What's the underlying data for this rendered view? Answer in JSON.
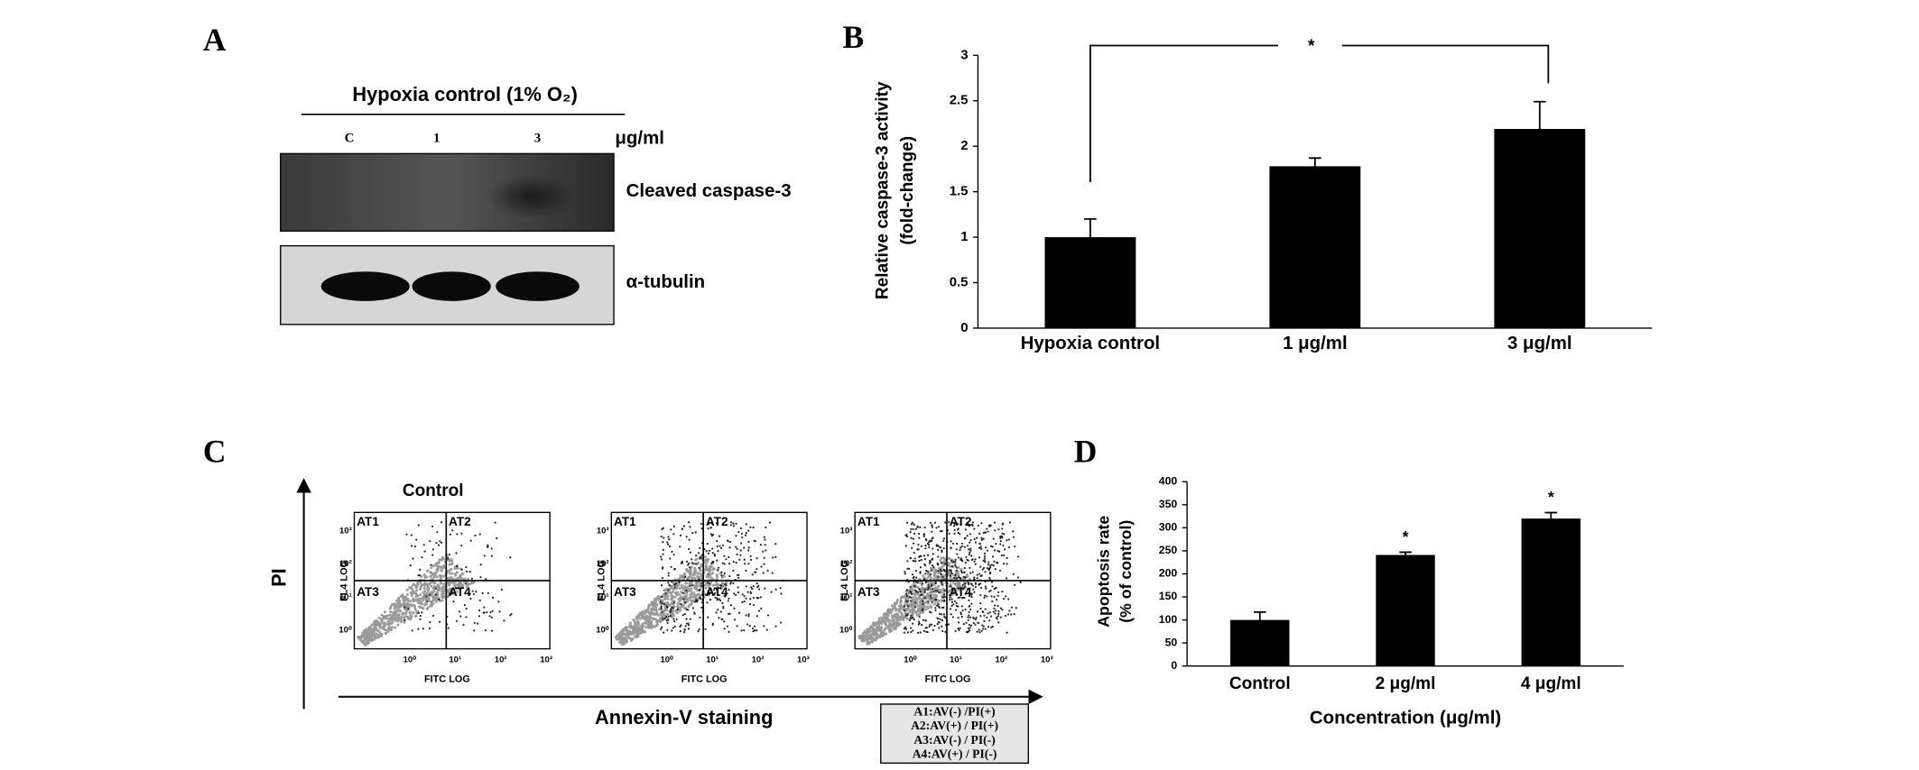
{
  "panel_labels": [
    "A",
    "B",
    "C",
    "D"
  ],
  "blot": {
    "title": "Hypoxia control (1% O₂)",
    "lanes": [
      "C",
      "1",
      "3"
    ],
    "unit": "μg/ml",
    "bands": [
      "Cleaved caspase-3",
      "α-tubulin"
    ]
  },
  "flow": {
    "plots": [
      {
        "title": "Control"
      },
      {
        "title": null
      },
      {
        "title": null
      }
    ],
    "quadrants": [
      "AT1",
      "AT2",
      "AT3",
      "AT4"
    ],
    "ylabel": "FL4 LOG",
    "xlabel": "FITC LOG",
    "ticks": [
      "10⁰",
      "10¹",
      "10²",
      "10³"
    ],
    "axis_y": "PI",
    "axis_x": "Annexin-V staining",
    "legend": [
      "A1:AV(-) /PI(+)",
      "A2:AV(+) / PI(+)",
      "A3:AV(-) / PI(-)",
      "A4:AV(+) / PI(-)"
    ]
  },
  "chart_data": [
    {
      "type": "bar",
      "ylabel": [
        "Relative caspase-3 activity",
        "(fold-change)"
      ],
      "categories": [
        "Hypoxia control",
        "1 μg/ml",
        "3 μg/ml"
      ],
      "values": [
        1.0,
        1.78,
        2.19
      ],
      "errors": [
        0.2,
        0.09,
        0.3
      ],
      "color": "#000000",
      "ylim": [
        0,
        3
      ],
      "yticks": [
        0,
        0.5,
        1,
        1.5,
        2,
        2.5,
        3
      ],
      "bracket_label": "*"
    },
    {
      "type": "bar",
      "ylabel": [
        "Apoptosis rate",
        "(% of control)"
      ],
      "xlabel": "Concentration (μg/ml)",
      "categories": [
        "Control",
        "2 μg/ml",
        "4 μg/ml"
      ],
      "values": [
        100,
        241,
        320
      ],
      "errors": [
        17,
        6,
        13
      ],
      "color": "#000000",
      "ylim": [
        0,
        400
      ],
      "yticks": [
        0,
        50,
        100,
        150,
        200,
        250,
        300,
        350,
        400
      ],
      "star_labels": [
        null,
        "*",
        "*"
      ]
    }
  ]
}
